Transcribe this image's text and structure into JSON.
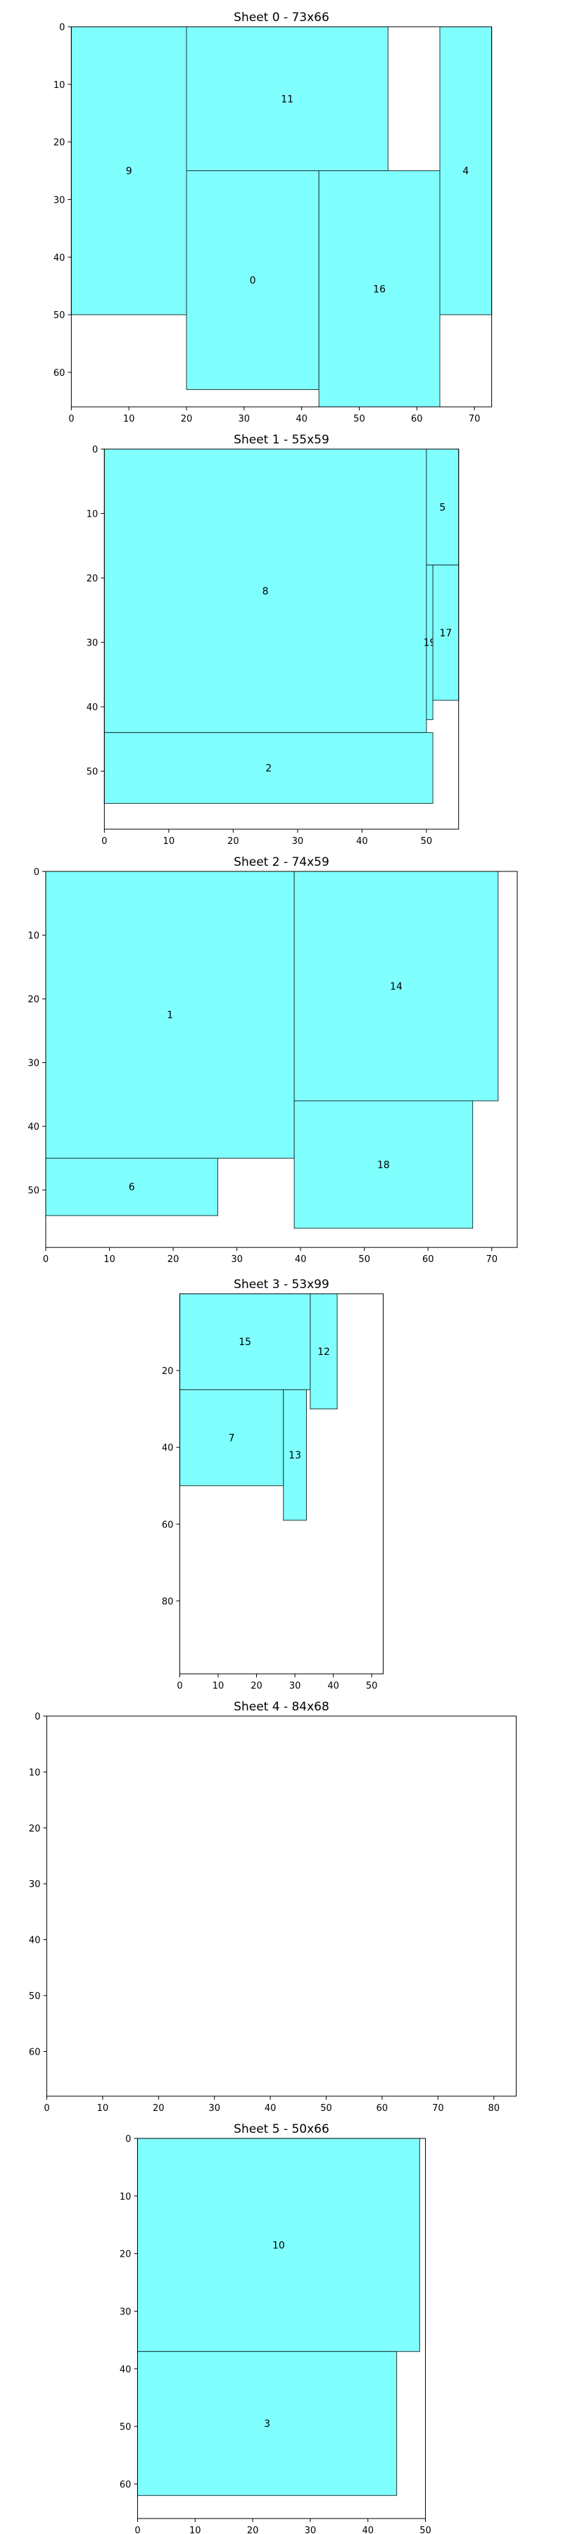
{
  "chart_data": [
    {
      "type": "packing",
      "title": "Sheet 0 - 73x66",
      "sheet_width": 73,
      "sheet_height": 66,
      "xlim": [
        0,
        73
      ],
      "ylim": [
        66,
        0
      ],
      "xticks": [
        0,
        10,
        20,
        30,
        40,
        50,
        60,
        70
      ],
      "yticks": [
        0,
        10,
        20,
        30,
        40,
        50,
        60
      ],
      "grid": false,
      "rects": [
        {
          "label": "9",
          "x": 0,
          "y": 0,
          "w": 20,
          "h": 50
        },
        {
          "label": "11",
          "x": 20,
          "y": 0,
          "w": 35,
          "h": 25
        },
        {
          "label": "4",
          "x": 64,
          "y": 0,
          "w": 9,
          "h": 50
        },
        {
          "label": "0",
          "x": 20,
          "y": 25,
          "w": 23,
          "h": 38
        },
        {
          "label": "16",
          "x": 43,
          "y": 25,
          "w": 21,
          "h": 41
        }
      ]
    },
    {
      "type": "packing",
      "title": "Sheet 1 - 55x59",
      "sheet_width": 55,
      "sheet_height": 59,
      "xlim": [
        0,
        55
      ],
      "ylim": [
        59,
        0
      ],
      "xticks": [
        0,
        10,
        20,
        30,
        40,
        50
      ],
      "yticks": [
        0,
        10,
        20,
        30,
        40,
        50
      ],
      "grid": false,
      "rects": [
        {
          "label": "8",
          "x": 0,
          "y": 0,
          "w": 50,
          "h": 44
        },
        {
          "label": "5",
          "x": 50,
          "y": 0,
          "w": 5,
          "h": 18
        },
        {
          "label": "19",
          "x": 50,
          "y": 18,
          "w": 1,
          "h": 24
        },
        {
          "label": "17",
          "x": 51,
          "y": 18,
          "w": 4,
          "h": 21
        },
        {
          "label": "2",
          "x": 0,
          "y": 44,
          "w": 51,
          "h": 11
        }
      ]
    },
    {
      "type": "packing",
      "title": "Sheet 2 - 74x59",
      "sheet_width": 74,
      "sheet_height": 59,
      "xlim": [
        0,
        74
      ],
      "ylim": [
        59,
        0
      ],
      "xticks": [
        0,
        10,
        20,
        30,
        40,
        50,
        60,
        70
      ],
      "yticks": [
        0,
        10,
        20,
        30,
        40,
        50
      ],
      "grid": false,
      "rects": [
        {
          "label": "1",
          "x": 0,
          "y": 0,
          "w": 39,
          "h": 45
        },
        {
          "label": "14",
          "x": 39,
          "y": 0,
          "w": 32,
          "h": 36
        },
        {
          "label": "6",
          "x": 0,
          "y": 45,
          "w": 27,
          "h": 9
        },
        {
          "label": "18",
          "x": 39,
          "y": 36,
          "w": 28,
          "h": 20
        }
      ]
    },
    {
      "type": "packing",
      "title": "Sheet 3 - 53x99",
      "sheet_width": 53,
      "sheet_height": 99,
      "xlim": [
        0,
        53
      ],
      "ylim": [
        99,
        0
      ],
      "xticks": [
        0,
        10,
        20,
        30,
        40,
        50
      ],
      "yticks": [
        20,
        40,
        60,
        80
      ],
      "grid": false,
      "rects": [
        {
          "label": "15",
          "x": 0,
          "y": 0,
          "w": 34,
          "h": 25
        },
        {
          "label": "12",
          "x": 34,
          "y": 0,
          "w": 7,
          "h": 30
        },
        {
          "label": "7",
          "x": 0,
          "y": 25,
          "w": 27,
          "h": 25
        },
        {
          "label": "13",
          "x": 27,
          "y": 25,
          "w": 6,
          "h": 34
        }
      ]
    },
    {
      "type": "packing",
      "title": "Sheet 4 - 84x68",
      "sheet_width": 84,
      "sheet_height": 68,
      "xlim": [
        0,
        84
      ],
      "ylim": [
        68,
        0
      ],
      "xticks": [
        0,
        10,
        20,
        30,
        40,
        50,
        60,
        70,
        80
      ],
      "yticks": [
        0,
        10,
        20,
        30,
        40,
        50,
        60
      ],
      "grid": false,
      "rects": []
    },
    {
      "type": "packing",
      "title": "Sheet 5 - 50x66",
      "sheet_width": 50,
      "sheet_height": 66,
      "xlim": [
        0,
        50
      ],
      "ylim": [
        66,
        0
      ],
      "xticks": [
        0,
        10,
        20,
        30,
        40,
        50
      ],
      "yticks": [
        0,
        10,
        20,
        30,
        40,
        50,
        60
      ],
      "grid": false,
      "rects": [
        {
          "label": "10",
          "x": 0,
          "y": 0,
          "w": 49,
          "h": 37
        },
        {
          "label": "3",
          "x": 0,
          "y": 37,
          "w": 45,
          "h": 25
        }
      ]
    }
  ],
  "colors": {
    "rect_fill": "#80ffff",
    "rect_stroke": "#1f3a3a",
    "axes": "#000000"
  }
}
